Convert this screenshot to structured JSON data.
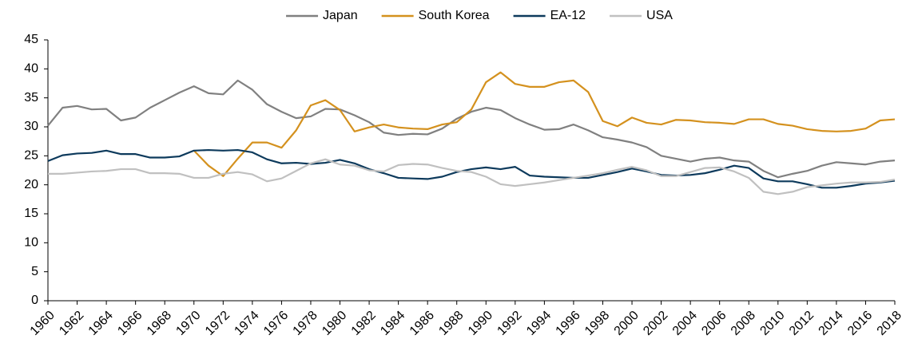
{
  "chart_data": {
    "type": "line",
    "x": [
      1960,
      1961,
      1962,
      1963,
      1964,
      1965,
      1966,
      1967,
      1968,
      1969,
      1970,
      1971,
      1972,
      1973,
      1974,
      1975,
      1976,
      1977,
      1978,
      1979,
      1980,
      1981,
      1982,
      1983,
      1984,
      1985,
      1986,
      1987,
      1988,
      1989,
      1990,
      1991,
      1992,
      1993,
      1994,
      1995,
      1996,
      1997,
      1998,
      1999,
      2000,
      2001,
      2002,
      2003,
      2004,
      2005,
      2006,
      2007,
      2008,
      2009,
      2010,
      2011,
      2012,
      2013,
      2014,
      2015,
      2016,
      2017,
      2018
    ],
    "xlim": [
      1960,
      2018
    ],
    "xticks": [
      1960,
      1962,
      1964,
      1966,
      1968,
      1970,
      1972,
      1974,
      1976,
      1978,
      1980,
      1982,
      1984,
      1986,
      1988,
      1990,
      1992,
      1994,
      1996,
      1998,
      2000,
      2002,
      2004,
      2006,
      2008,
      2010,
      2012,
      2014,
      2016,
      2018
    ],
    "ylim": [
      0,
      45
    ],
    "yticks": [
      0,
      5,
      10,
      15,
      20,
      25,
      30,
      35,
      40,
      45
    ],
    "legend": "top",
    "series": [
      {
        "name": "Japan",
        "color": "#808080",
        "values": [
          30.2,
          33.3,
          33.6,
          33.0,
          33.1,
          31.1,
          31.6,
          33.3,
          34.6,
          35.9,
          37.0,
          35.8,
          35.6,
          38.0,
          36.4,
          33.9,
          32.6,
          31.5,
          31.8,
          33.1,
          33.0,
          32.0,
          30.8,
          29.0,
          28.6,
          28.8,
          28.7,
          29.7,
          31.4,
          32.6,
          33.3,
          32.9,
          31.5,
          30.4,
          29.5,
          29.6,
          30.4,
          29.4,
          28.2,
          27.8,
          27.3,
          26.5,
          25.0,
          24.5,
          24.0,
          24.5,
          24.7,
          24.2,
          24.0,
          22.4,
          21.3,
          21.9,
          22.4,
          23.3,
          23.9,
          23.7,
          23.5,
          24.0,
          24.2
        ]
      },
      {
        "name": "South Korea",
        "color": "#d4911e",
        "values": [
          null,
          null,
          null,
          null,
          null,
          null,
          null,
          null,
          null,
          null,
          25.9,
          23.3,
          21.5,
          24.5,
          27.3,
          27.3,
          26.4,
          29.4,
          33.7,
          34.6,
          32.9,
          29.2,
          29.9,
          30.4,
          29.9,
          29.7,
          29.6,
          30.4,
          30.8,
          33.0,
          37.7,
          39.4,
          37.4,
          36.9,
          36.9,
          37.7,
          38.0,
          36.0,
          31.0,
          30.1,
          31.6,
          30.7,
          30.4,
          31.2,
          31.1,
          30.8,
          30.7,
          30.5,
          31.3,
          31.3,
          30.5,
          30.2,
          29.6,
          29.3,
          29.2,
          29.3,
          29.7,
          31.1,
          31.3
        ]
      },
      {
        "name": "EA-12",
        "color": "#0d3a5c",
        "values": [
          24.1,
          25.1,
          25.4,
          25.5,
          25.9,
          25.3,
          25.3,
          24.7,
          24.7,
          24.9,
          25.9,
          26.0,
          25.9,
          26.0,
          25.6,
          24.4,
          23.7,
          23.8,
          23.6,
          23.8,
          24.3,
          23.7,
          22.7,
          22.0,
          21.2,
          21.1,
          21.0,
          21.4,
          22.2,
          22.7,
          23.0,
          22.7,
          23.1,
          21.6,
          21.4,
          21.3,
          21.2,
          21.2,
          21.7,
          22.2,
          22.8,
          22.3,
          21.7,
          21.6,
          21.7,
          22.0,
          22.6,
          23.3,
          22.9,
          21.1,
          20.6,
          20.6,
          20.1,
          19.5,
          19.5,
          19.8,
          20.2,
          20.4,
          20.7
        ]
      },
      {
        "name": "USA",
        "color": "#c0c0c0",
        "values": [
          21.9,
          21.9,
          22.1,
          22.3,
          22.4,
          22.7,
          22.7,
          22.0,
          22.0,
          21.9,
          21.2,
          21.2,
          21.9,
          22.2,
          21.8,
          20.6,
          21.1,
          22.4,
          23.7,
          24.4,
          23.5,
          23.3,
          22.5,
          22.3,
          23.4,
          23.6,
          23.5,
          22.9,
          22.4,
          22.2,
          21.4,
          20.1,
          19.8,
          20.1,
          20.4,
          20.8,
          21.2,
          21.6,
          22.0,
          22.6,
          23.1,
          22.5,
          21.5,
          21.5,
          22.2,
          22.9,
          23.0,
          22.3,
          21.2,
          18.8,
          18.4,
          18.8,
          19.6,
          19.9,
          20.2,
          20.4,
          20.4,
          20.5,
          20.9
        ]
      }
    ]
  }
}
